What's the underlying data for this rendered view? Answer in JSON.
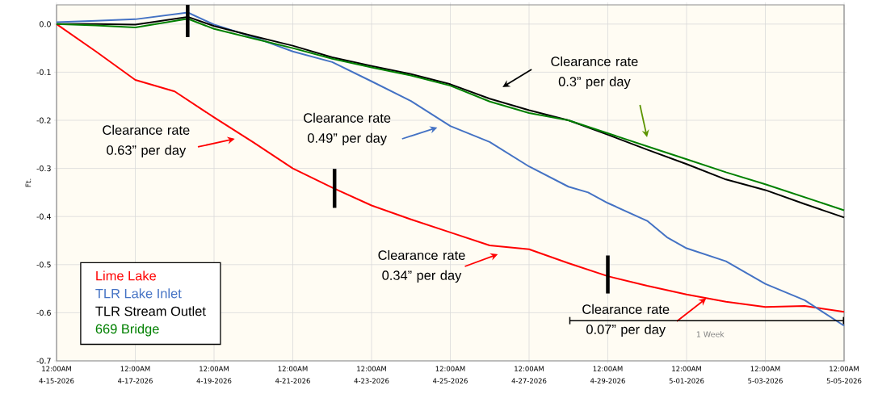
{
  "chart_data": {
    "type": "line",
    "ylabel": "Ft.",
    "xlim": [
      "2026-04-15",
      "2026-05-05"
    ],
    "xticks": [
      {
        "value": "2026-04-15",
        "label": "12:00AM 4-15-2026"
      },
      {
        "value": "2026-04-17",
        "label": "12:00AM 4-17-2026"
      },
      {
        "value": "2026-04-19",
        "label": "12:00AM 4-19-2026"
      },
      {
        "value": "2026-04-21",
        "label": "12:00AM 4-21-2026"
      },
      {
        "value": "2026-04-23",
        "label": "12:00AM 4-23-2026"
      },
      {
        "value": "2026-04-25",
        "label": "12:00AM 4-25-2026"
      },
      {
        "value": "2026-04-27",
        "label": "12:00AM 4-27-2026"
      },
      {
        "value": "2026-04-29",
        "label": "12:00AM 4-29-2026"
      },
      {
        "value": "2026-05-01",
        "label": "12:00AM 5-01-2026"
      },
      {
        "value": "2026-05-03",
        "label": "12:00AM 5-03-2026"
      },
      {
        "value": "2026-05-05",
        "label": "12:00AM 5-05-2026"
      }
    ],
    "ylim": [
      -0.7,
      0.04
    ],
    "yticks": [
      {
        "value": 0,
        "label": "0.0"
      },
      -0.1,
      -0.2,
      -0.3,
      -0.4,
      -0.5,
      -0.6,
      -0.7
    ],
    "grid": true,
    "legend": "bottom left",
    "marker": "none",
    "line_style": "solid",
    "series": [
      {
        "name": "Lime Lake",
        "color": "#ff0000",
        "x": [
          "2026-04-15",
          "2026-04-16",
          "2026-04-17",
          "2026-04-18",
          "2026-04-19",
          "2026-04-20",
          "2026-04-21",
          "2026-04-22",
          "2026-04-23",
          "2026-04-24",
          "2026-04-25",
          "2026-04-26",
          "2026-04-27",
          "2026-04-28",
          "2026-04-29",
          "2026-04-30",
          "2026-05-01",
          "2026-05-02",
          "2026-05-03",
          "2026-05-04",
          "2026-05-05"
        ],
        "values": [
          0,
          -0.057,
          -0.116,
          -0.14,
          -0.194,
          -0.246,
          -0.3,
          -0.34,
          -0.377,
          -0.406,
          -0.433,
          -0.46,
          -0.468,
          -0.497,
          -0.524,
          -0.544,
          -0.562,
          -0.577,
          -0.588,
          -0.586,
          -0.598
        ]
      },
      {
        "name": "TLR Lake Inlet",
        "color": "#4472c4",
        "x": [
          "2026-04-15",
          "2026-04-16",
          "2026-04-17",
          "2026-04-18T08:00",
          "2026-04-19",
          "2026-04-20",
          "2026-04-21",
          "2026-04-22",
          "2026-04-23",
          "2026-04-24",
          "2026-04-25",
          "2026-04-26",
          "2026-04-27",
          "2026-04-28",
          "2026-04-28T12:00",
          "2026-04-29",
          "2026-04-30",
          "2026-04-30T12:00",
          "2026-05-01",
          "2026-05-02",
          "2026-05-03",
          "2026-05-04",
          "2026-05-05"
        ],
        "values": [
          0.004,
          0.007,
          0.01,
          0.024,
          -0.001,
          -0.027,
          -0.057,
          -0.079,
          -0.119,
          -0.16,
          -0.212,
          -0.245,
          -0.296,
          -0.338,
          -0.35,
          -0.372,
          -0.409,
          -0.443,
          -0.466,
          -0.493,
          -0.54,
          -0.574,
          -0.627
        ]
      },
      {
        "name": "TLR Stream Outlet",
        "color": "#000000",
        "x": [
          "2026-04-15",
          "2026-04-16",
          "2026-04-17",
          "2026-04-18T08:00",
          "2026-04-19",
          "2026-04-20",
          "2026-04-21",
          "2026-04-22",
          "2026-04-23",
          "2026-04-24",
          "2026-04-25",
          "2026-04-26",
          "2026-04-27",
          "2026-04-28",
          "2026-04-29",
          "2026-04-30",
          "2026-05-01",
          "2026-05-02",
          "2026-05-03",
          "2026-05-04",
          "2026-05-05"
        ],
        "values": [
          0,
          0,
          -0.001,
          0.015,
          -0.004,
          -0.025,
          -0.045,
          -0.069,
          -0.087,
          -0.104,
          -0.125,
          -0.155,
          -0.179,
          -0.2,
          -0.23,
          -0.261,
          -0.291,
          -0.323,
          -0.345,
          -0.374,
          -0.402
        ]
      },
      {
        "name": "669 Bridge",
        "color": "#008000",
        "x": [
          "2026-04-15",
          "2026-04-16",
          "2026-04-17",
          "2026-04-18T08:00",
          "2026-04-19",
          "2026-04-20",
          "2026-04-21",
          "2026-04-22",
          "2026-04-23",
          "2026-04-24",
          "2026-04-25",
          "2026-04-26",
          "2026-04-27",
          "2026-04-28",
          "2026-04-29",
          "2026-04-30",
          "2026-05-01",
          "2026-05-02",
          "2026-05-03",
          "2026-05-04",
          "2026-05-05"
        ],
        "values": [
          0,
          -0.003,
          -0.007,
          0.011,
          -0.01,
          -0.03,
          -0.05,
          -0.072,
          -0.09,
          -0.107,
          -0.128,
          -0.161,
          -0.185,
          -0.2,
          -0.227,
          -0.254,
          -0.281,
          -0.308,
          -0.333,
          -0.36,
          -0.387
        ]
      }
    ],
    "annotations": [
      "Clearance rate 0.63” per day",
      "Clearance rate 0.49” per day",
      "Clearance rate 0.3” per day",
      "Clearance rate 0.34” per day",
      {
        "text": "Clearance rate 0.07” per day",
        "x": "2026-05-01T12:00",
        "y": -0.57
      },
      "1 Week"
    ]
  }
}
